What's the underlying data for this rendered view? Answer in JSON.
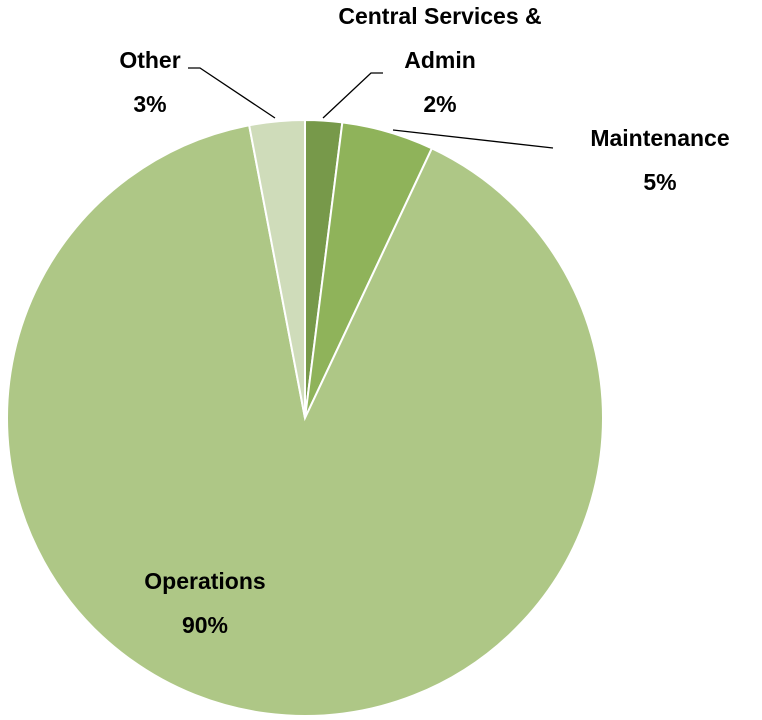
{
  "chart_data": {
    "type": "pie",
    "categories": [
      "Central Services & Admin",
      "Maintenance",
      "Operations",
      "Other"
    ],
    "values": [
      2,
      5,
      90,
      3
    ],
    "value_labels": [
      "2%",
      "5%",
      "90%",
      "3%"
    ],
    "colors": [
      "#77994a",
      "#8fb35a",
      "#aec786",
      "#cfdcba"
    ]
  }
}
